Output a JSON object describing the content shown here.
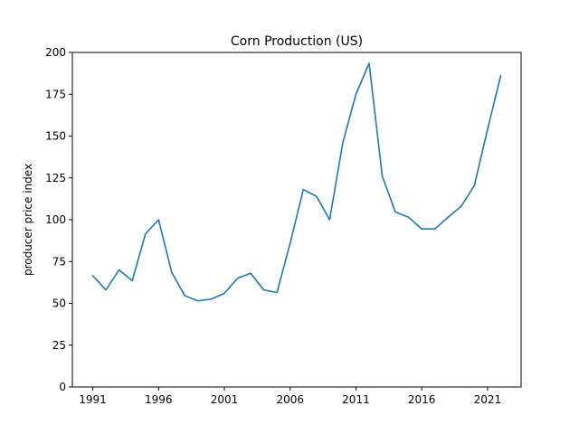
{
  "chart_data": {
    "type": "line",
    "title": "Corn Production (US)",
    "xlabel": "",
    "ylabel": "producer price index",
    "x": [
      1991,
      1992,
      1993,
      1994,
      1995,
      1996,
      1997,
      1998,
      1999,
      2000,
      2001,
      2002,
      2003,
      2004,
      2005,
      2006,
      2007,
      2008,
      2009,
      2010,
      2011,
      2012,
      2013,
      2014,
      2015,
      2016,
      2017,
      2018,
      2019,
      2020,
      2021,
      2022
    ],
    "series": [
      {
        "color": "#1f77b4",
        "values": [
          66.5,
          58,
          70,
          63.5,
          91.5,
          100,
          68.5,
          54.5,
          51.5,
          52.5,
          56,
          65,
          68,
          58,
          56.5,
          86,
          118,
          114,
          100,
          146,
          175,
          193.5,
          126,
          104.5,
          101.5,
          94.5,
          94.5,
          101.5,
          108,
          120.5,
          154,
          186
        ]
      }
    ],
    "xlim": [
      1989.45,
      1993.55,
      1991
    ],
    "xticks": [
      1991,
      1996,
      2001,
      2006,
      2011,
      2016,
      2021
    ],
    "xtick_labels": [
      "1991",
      "1996",
      "2001",
      "2006",
      "2011",
      "2016",
      "2021"
    ],
    "ylim": [
      0,
      200
    ],
    "yticks": [
      0,
      25,
      50,
      75,
      100,
      125,
      150,
      175,
      200
    ],
    "ytick_labels": [
      "0",
      "25",
      "50",
      "75",
      "100",
      "125",
      "150",
      "175",
      "200"
    ],
    "grid": false,
    "legend": "none"
  }
}
